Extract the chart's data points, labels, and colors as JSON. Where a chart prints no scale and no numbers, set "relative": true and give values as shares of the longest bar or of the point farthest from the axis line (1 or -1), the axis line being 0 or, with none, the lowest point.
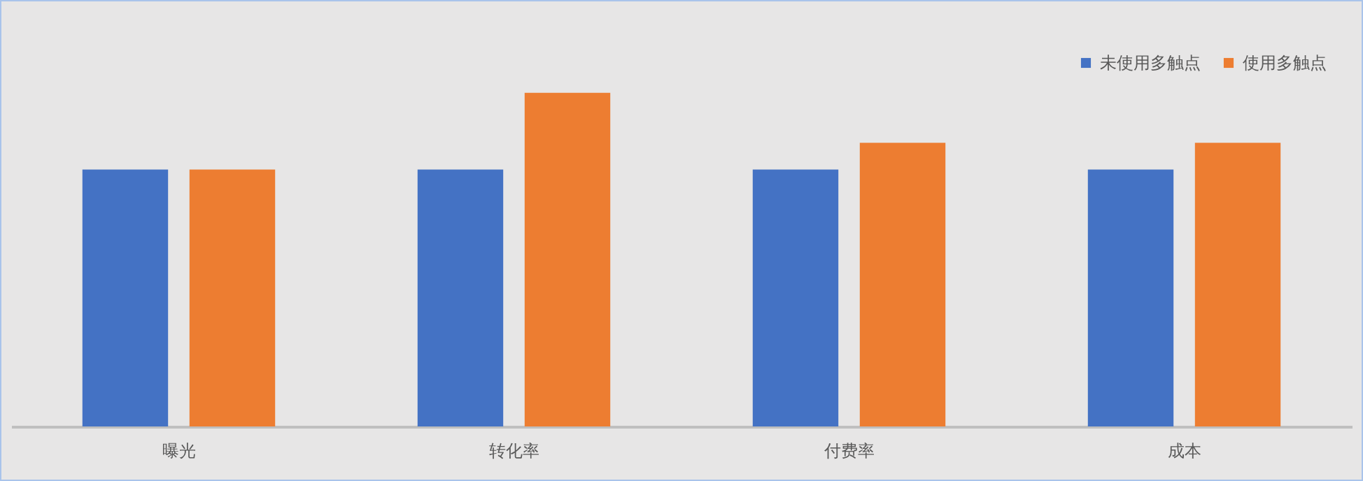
{
  "chart_data": {
    "type": "bar",
    "relative": true,
    "legend": "top right",
    "categories": [
      "曝光",
      "转化率",
      "付费率",
      "成本"
    ],
    "series": [
      {
        "name": "未使用多触点",
        "color": "#4472c4",
        "values": [
          0.77,
          0.77,
          0.77,
          0.77
        ]
      },
      {
        "name": "使用多触点",
        "color": "#ed7d31",
        "values": [
          0.77,
          1,
          0.85,
          0.85
        ]
      }
    ]
  }
}
